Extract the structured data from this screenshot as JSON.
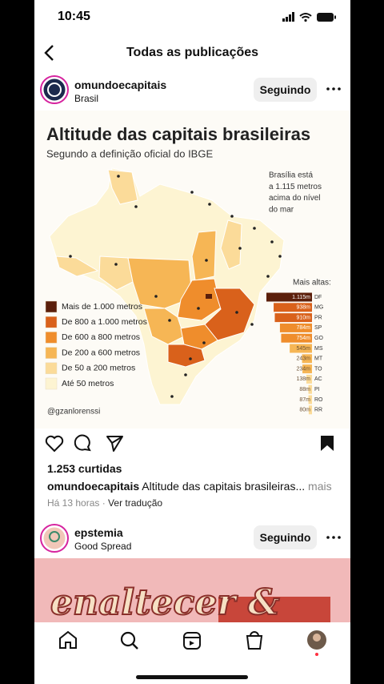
{
  "status_bar": {
    "time": "10:45"
  },
  "header": {
    "title": "Todas as publicações"
  },
  "posts": [
    {
      "username": "omundoecapitais",
      "location": "Brasil",
      "follow_button": "Seguindo",
      "image": {
        "title": "Altitude das capitais brasileiras",
        "subtitle": "Segundo a definição oficial do IBGE",
        "annotation": [
          "Brasília está",
          "a 1.115 metros",
          "acima do nível",
          "do mar"
        ],
        "legend": [
          {
            "label": "Mais de 1.000 metros",
            "color": "#5b1f0b"
          },
          {
            "label": "De 800 a 1.000 metros",
            "color": "#d9611b"
          },
          {
            "label": "De 600 a 800 metros",
            "color": "#ef8d2c"
          },
          {
            "label": "De 200 a 600 metros",
            "color": "#f6b655"
          },
          {
            "label": "De 50 a 200 metros",
            "color": "#fbdb99"
          },
          {
            "label": "Até 50 metros",
            "color": "#fdf4d2"
          }
        ],
        "credit": "@gzanlorenssi",
        "ranking_title": "Mais altas:",
        "ranking": [
          {
            "state": "DF",
            "value": 1115,
            "label": "1.115m",
            "color": "#5b1f0b"
          },
          {
            "state": "MG",
            "value": 938,
            "label": "938m",
            "color": "#d9611b"
          },
          {
            "state": "PR",
            "value": 910,
            "label": "910m",
            "color": "#d9611b"
          },
          {
            "state": "SP",
            "value": 784,
            "label": "784m",
            "color": "#ef8d2c"
          },
          {
            "state": "GO",
            "value": 754,
            "label": "754m",
            "color": "#ef8d2c"
          },
          {
            "state": "MS",
            "value": 545,
            "label": "545m",
            "color": "#f6b655"
          },
          {
            "state": "MT",
            "value": 243,
            "label": "243m",
            "color": "#f6b655"
          },
          {
            "state": "TO",
            "value": 234,
            "label": "234m",
            "color": "#f6b655"
          },
          {
            "state": "AC",
            "value": 138,
            "label": "138m",
            "color": "#fbdb99"
          },
          {
            "state": "PI",
            "value": 88,
            "label": "88m",
            "color": "#fbdb99"
          },
          {
            "state": "RO",
            "value": 87,
            "label": "87m",
            "color": "#fbdb99"
          },
          {
            "state": "RR",
            "value": 80,
            "label": "80m",
            "color": "#fbdb99"
          }
        ]
      },
      "likes": "1.253 curtidas",
      "caption": {
        "username": "omundoecapitais",
        "text": "Altitude das capitais brasileiras...",
        "more": "mais"
      },
      "time": "Há 13 horas",
      "translate": "Ver tradução"
    },
    {
      "username": "epstemia",
      "location": "Good Spread",
      "follow_button": "Seguindo",
      "image_text": "enaltecer &"
    }
  ]
}
